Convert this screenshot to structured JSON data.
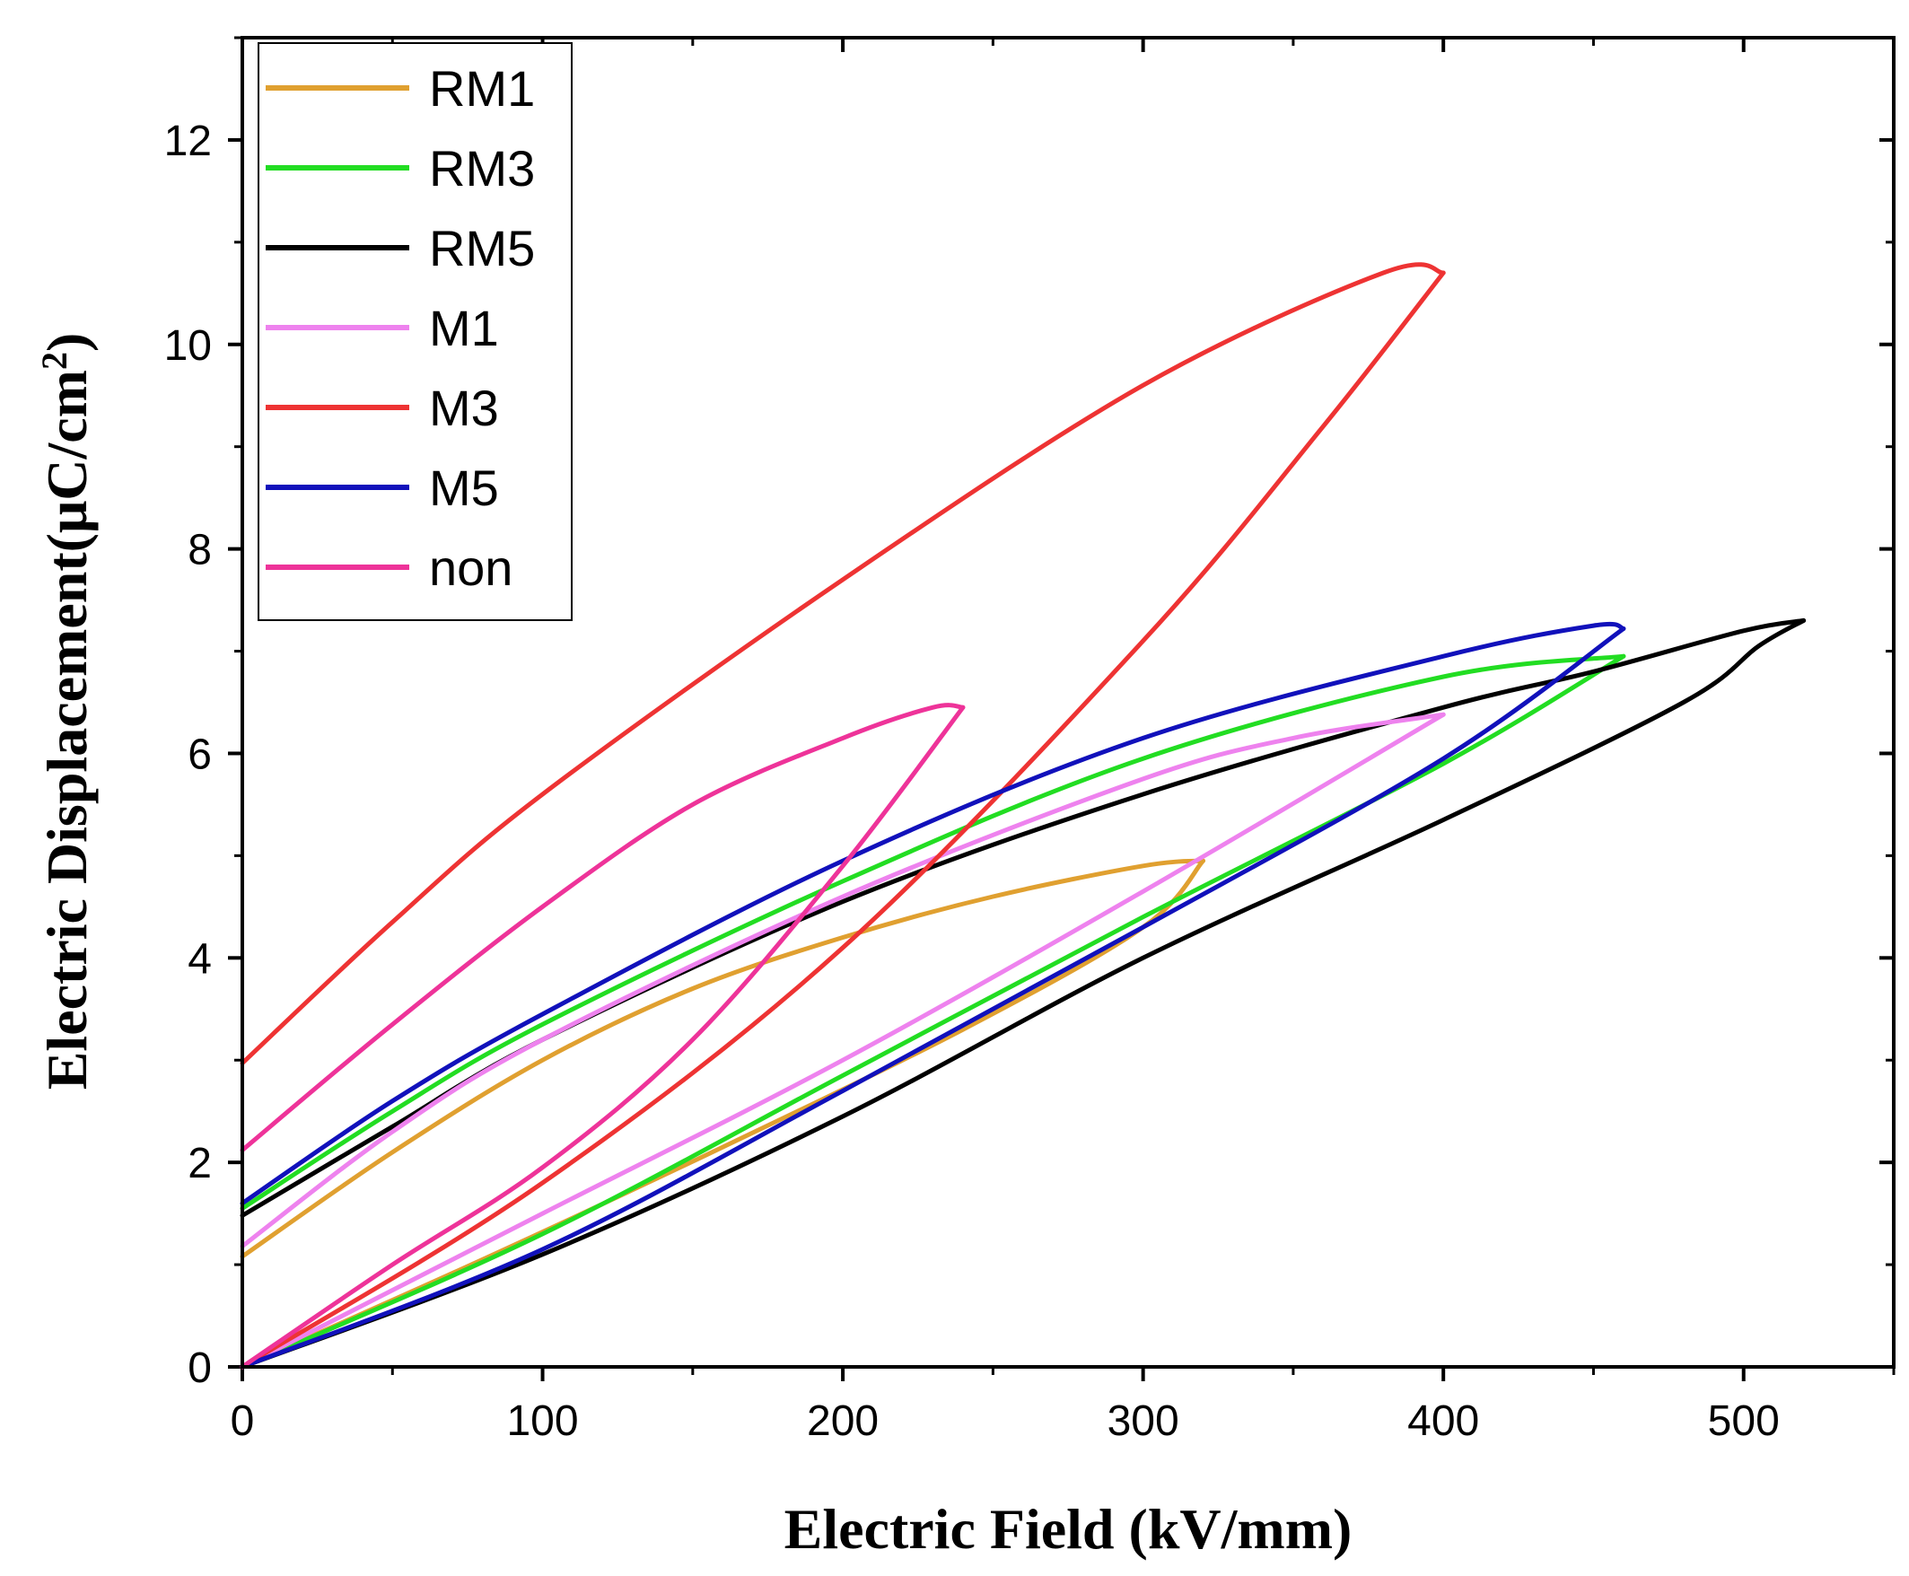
{
  "chart_data": {
    "type": "line",
    "title": "",
    "xlabel": "Electric Field (kV/mm)",
    "ylabel_main": "Electric Displacement(μC/cm",
    "ylabel_sup": "2",
    "ylabel_close": ")",
    "xlim": [
      0,
      550
    ],
    "ylim": [
      0,
      13
    ],
    "x_ticks": [
      0,
      100,
      200,
      300,
      400,
      500
    ],
    "x_tick_labels": [
      "0",
      "100",
      "200",
      "300",
      "400",
      "500"
    ],
    "y_ticks": [
      0,
      2,
      4,
      6,
      8,
      10,
      12
    ],
    "y_tick_labels": [
      "0",
      "2",
      "4",
      "6",
      "8",
      "10",
      "12"
    ],
    "grid": false,
    "legend_position": "top-left",
    "series": [
      {
        "name": "RM1",
        "color": "#E0A030",
        "emax": 320,
        "dmax": 4.95,
        "dr": 1.08,
        "upper": [
          [
            0,
            0
          ],
          [
            80,
            1.05
          ],
          [
            160,
            2.15
          ],
          [
            240,
            3.3
          ],
          [
            300,
            4.3
          ],
          [
            320,
            4.95
          ]
        ],
        "lower": [
          [
            320,
            4.95
          ],
          [
            300,
            4.9
          ],
          [
            250,
            4.6
          ],
          [
            200,
            4.2
          ],
          [
            150,
            3.7
          ],
          [
            100,
            3.0
          ],
          [
            50,
            2.1
          ],
          [
            0,
            1.08
          ]
        ]
      },
      {
        "name": "RM3",
        "color": "#22DD22",
        "emax": 460,
        "dmax": 6.95,
        "dr": 1.55,
        "upper": [
          [
            0,
            0
          ],
          [
            100,
            1.3
          ],
          [
            200,
            2.85
          ],
          [
            300,
            4.4
          ],
          [
            400,
            5.9
          ],
          [
            460,
            6.95
          ]
        ],
        "lower": [
          [
            460,
            6.95
          ],
          [
            400,
            6.75
          ],
          [
            300,
            5.95
          ],
          [
            200,
            4.75
          ],
          [
            100,
            3.35
          ],
          [
            50,
            2.5
          ],
          [
            0,
            1.55
          ]
        ]
      },
      {
        "name": "RM5",
        "color": "#000000",
        "emax": 520,
        "dmax": 7.3,
        "dr": 1.48,
        "upper": [
          [
            0,
            0
          ],
          [
            100,
            1.1
          ],
          [
            200,
            2.45
          ],
          [
            300,
            4.0
          ],
          [
            400,
            5.35
          ],
          [
            480,
            6.5
          ],
          [
            505,
            7.05
          ],
          [
            520,
            7.3
          ]
        ],
        "lower": [
          [
            520,
            7.3
          ],
          [
            500,
            7.2
          ],
          [
            450,
            6.8
          ],
          [
            400,
            6.45
          ],
          [
            300,
            5.6
          ],
          [
            200,
            4.55
          ],
          [
            100,
            3.2
          ],
          [
            50,
            2.35
          ],
          [
            0,
            1.48
          ]
        ]
      },
      {
        "name": "M1",
        "color": "#EE82EE",
        "emax": 400,
        "dmax": 6.38,
        "dr": 1.18,
        "upper": [
          [
            0,
            0
          ],
          [
            100,
            1.5
          ],
          [
            200,
            3.0
          ],
          [
            300,
            4.65
          ],
          [
            400,
            6.38
          ]
        ],
        "lower": [
          [
            400,
            6.38
          ],
          [
            350,
            6.15
          ],
          [
            300,
            5.75
          ],
          [
            200,
            4.6
          ],
          [
            100,
            3.2
          ],
          [
            50,
            2.3
          ],
          [
            0,
            1.18
          ]
        ]
      },
      {
        "name": "M3",
        "color": "#EE3333",
        "emax": 400,
        "dmax": 10.7,
        "dr": 2.97,
        "upper": [
          [
            0,
            0
          ],
          [
            100,
            1.8
          ],
          [
            200,
            4.1
          ],
          [
            300,
            7.1
          ],
          [
            360,
            9.2
          ],
          [
            400,
            10.7
          ]
        ],
        "lower": [
          [
            400,
            10.7
          ],
          [
            380,
            10.7
          ],
          [
            300,
            9.6
          ],
          [
            200,
            7.7
          ],
          [
            100,
            5.6
          ],
          [
            50,
            4.35
          ],
          [
            0,
            2.97
          ]
        ]
      },
      {
        "name": "M5",
        "color": "#1111BB",
        "emax": 460,
        "dmax": 7.22,
        "dr": 1.6,
        "upper": [
          [
            0,
            0
          ],
          [
            100,
            1.15
          ],
          [
            200,
            2.7
          ],
          [
            300,
            4.3
          ],
          [
            400,
            5.95
          ],
          [
            460,
            7.22
          ]
        ],
        "lower": [
          [
            460,
            7.22
          ],
          [
            450,
            7.25
          ],
          [
            400,
            6.95
          ],
          [
            300,
            6.15
          ],
          [
            200,
            4.95
          ],
          [
            100,
            3.45
          ],
          [
            50,
            2.6
          ],
          [
            0,
            1.6
          ]
        ]
      },
      {
        "name": "non",
        "color": "#EE3399",
        "emax": 240,
        "dmax": 6.45,
        "dr": 2.12,
        "upper": [
          [
            0,
            0
          ],
          [
            50,
            1.0
          ],
          [
            100,
            1.95
          ],
          [
            150,
            3.2
          ],
          [
            200,
            4.9
          ],
          [
            240,
            6.45
          ]
        ],
        "lower": [
          [
            240,
            6.45
          ],
          [
            230,
            6.45
          ],
          [
            200,
            6.15
          ],
          [
            150,
            5.5
          ],
          [
            100,
            4.5
          ],
          [
            50,
            3.35
          ],
          [
            0,
            2.12
          ]
        ]
      }
    ]
  }
}
